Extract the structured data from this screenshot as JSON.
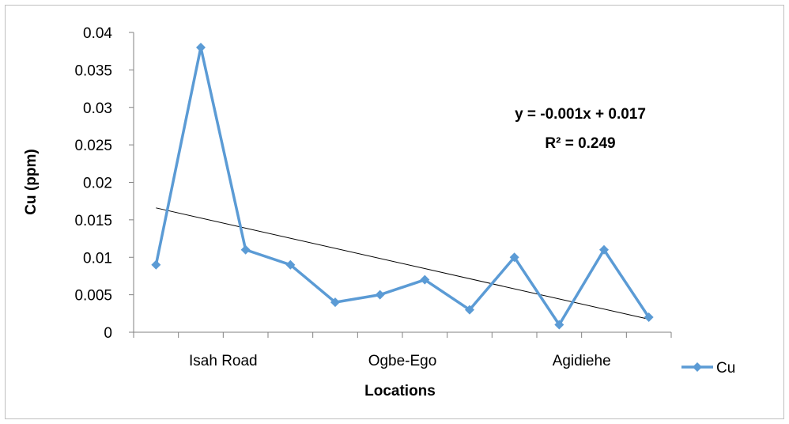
{
  "chart_data": {
    "type": "line",
    "title": "",
    "xlabel": "Locations",
    "ylabel": "Cu (ppm)",
    "x_tick_labels": [
      "Isah Road",
      "Ogbe-Ego",
      "Agidiehe"
    ],
    "y_ticks": [
      "0",
      "0.005",
      "0.01",
      "0.015",
      "0.02",
      "0.025",
      "0.03",
      "0.035",
      "0.04"
    ],
    "ylim": [
      0,
      0.04
    ],
    "grid": false,
    "legend_position": "right",
    "series": [
      {
        "name": "Cu",
        "color": "#5b9bd5",
        "marker": "diamond",
        "values": [
          0.009,
          0.038,
          0.011,
          0.009,
          0.004,
          0.005,
          0.007,
          0.003,
          0.01,
          0.001,
          0.011,
          0.002
        ]
      }
    ],
    "trendline": {
      "type": "linear",
      "equation": "y = -0.001x + 0.017",
      "r_squared": "R² = 0.249",
      "color": "#000000"
    }
  }
}
